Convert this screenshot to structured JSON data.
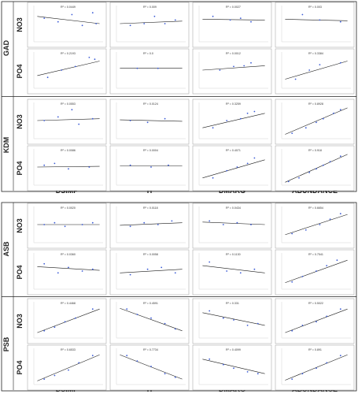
{
  "figure": {
    "panel_a": {
      "groups": [
        "GAD",
        "KDM"
      ],
      "variables": [
        "NO3",
        "PO4"
      ],
      "columns": [
        "DSIMP",
        "H",
        "DMARG",
        "ABUNDANCE"
      ]
    },
    "panel_b": {
      "groups": [
        "ASB",
        "PSB"
      ],
      "variables": [
        "NO3",
        "PO4"
      ],
      "columns": [
        "DSIMP",
        "H",
        "DMARG",
        "ABUNDANCE"
      ]
    }
  },
  "colors": {
    "point": "#3b5bd6",
    "line": "#1a1a1a",
    "frame": "#9a9a9a",
    "divider": "#222222"
  },
  "chart_data": [
    {
      "type": "scatter",
      "group": "GAD",
      "var": "NO3",
      "metric": "DSIMP",
      "r2_label": "R² = 0.0449",
      "xlim": [
        0,
        1
      ],
      "ylim": [
        0,
        1
      ],
      "x": [
        0.15,
        0.35,
        0.55,
        0.7,
        0.85,
        0.9
      ],
      "y": [
        0.65,
        0.55,
        0.75,
        0.45,
        0.8,
        0.5
      ],
      "fit": [
        0.7,
        0.5
      ]
    },
    {
      "type": "scatter",
      "group": "GAD",
      "var": "NO3",
      "metric": "H",
      "r2_label": "R² = 0.009",
      "xlim": [
        0,
        1
      ],
      "ylim": [
        0,
        1
      ],
      "x": [
        0.2,
        0.4,
        0.55,
        0.7,
        0.85
      ],
      "y": [
        0.45,
        0.5,
        0.7,
        0.5,
        0.6
      ],
      "fit": [
        0.5,
        0.57
      ]
    },
    {
      "type": "scatter",
      "group": "GAD",
      "var": "NO3",
      "metric": "DMARG",
      "r2_label": "R² = 0.0027",
      "xlim": [
        0,
        1
      ],
      "ylim": [
        0,
        1
      ],
      "x": [
        0.2,
        0.45,
        0.6,
        0.75
      ],
      "y": [
        0.7,
        0.6,
        0.65,
        0.55
      ],
      "fit": [
        0.62,
        0.6
      ]
    },
    {
      "type": "scatter",
      "group": "GAD",
      "var": "NO3",
      "metric": "ABUNDANCE",
      "r2_label": "R² = 0.003",
      "xlim": [
        0,
        1
      ],
      "ylim": [
        0,
        1
      ],
      "x": [
        0.3,
        0.55,
        0.85
      ],
      "y": [
        0.75,
        0.6,
        0.55
      ],
      "fit": [
        0.62,
        0.58
      ]
    },
    {
      "type": "scatter",
      "group": "GAD",
      "var": "PO4",
      "metric": "DSIMP",
      "r2_label": "R² = 0.2193",
      "xlim": [
        0,
        1
      ],
      "ylim": [
        0,
        1
      ],
      "x": [
        0.2,
        0.4,
        0.6,
        0.8,
        0.88
      ],
      "y": [
        0.3,
        0.5,
        0.6,
        0.85,
        0.8
      ],
      "fit": [
        0.35,
        0.75
      ]
    },
    {
      "type": "scatter",
      "group": "GAD",
      "var": "PO4",
      "metric": "H",
      "r2_label": "R² = 0.0",
      "xlim": [
        0,
        1
      ],
      "ylim": [
        0,
        1
      ],
      "x": [
        0.3,
        0.6
      ],
      "y": [
        0.55,
        0.55
      ],
      "fit": [
        0.55,
        0.55
      ]
    },
    {
      "type": "scatter",
      "group": "GAD",
      "var": "PO4",
      "metric": "DMARG",
      "r2_label": "R² = 0.0012",
      "xlim": [
        0,
        1
      ],
      "ylim": [
        0,
        1
      ],
      "x": [
        0.3,
        0.5,
        0.65,
        0.75
      ],
      "y": [
        0.5,
        0.6,
        0.62,
        0.7
      ],
      "fit": [
        0.5,
        0.62
      ]
    },
    {
      "type": "scatter",
      "group": "GAD",
      "var": "PO4",
      "metric": "ABUNDANCE",
      "r2_label": "R² = 0.3384",
      "xlim": [
        0,
        1
      ],
      "ylim": [
        0,
        1
      ],
      "x": [
        0.2,
        0.4,
        0.55,
        0.85
      ],
      "y": [
        0.25,
        0.5,
        0.65,
        0.7
      ],
      "fit": [
        0.25,
        0.75
      ]
    },
    {
      "type": "scatter",
      "group": "KDM",
      "var": "NO3",
      "metric": "DSIMP",
      "r2_label": "R² = 0.0553",
      "xlim": [
        0,
        1
      ],
      "ylim": [
        0,
        1
      ],
      "x": [
        0.15,
        0.35,
        0.55,
        0.65,
        0.85
      ],
      "y": [
        0.5,
        0.6,
        0.8,
        0.4,
        0.55
      ],
      "fit": [
        0.5,
        0.55
      ]
    },
    {
      "type": "scatter",
      "group": "KDM",
      "var": "NO3",
      "metric": "H",
      "r2_label": "R² = 0.0124",
      "xlim": [
        0,
        1
      ],
      "ylim": [
        0,
        1
      ],
      "x": [
        0.2,
        0.45,
        0.7
      ],
      "y": [
        0.5,
        0.45,
        0.55
      ],
      "fit": [
        0.52,
        0.48
      ]
    },
    {
      "type": "scatter",
      "group": "KDM",
      "var": "NO3",
      "metric": "DMARG",
      "r2_label": "R² = 0.3259",
      "xlim": [
        0,
        1
      ],
      "ylim": [
        0,
        1
      ],
      "x": [
        0.2,
        0.4,
        0.6,
        0.7,
        0.8
      ],
      "y": [
        0.3,
        0.5,
        0.55,
        0.7,
        0.75
      ],
      "fit": [
        0.3,
        0.7
      ]
    },
    {
      "type": "scatter",
      "group": "KDM",
      "var": "NO3",
      "metric": "ABUNDANCE",
      "r2_label": "R² = 0.8928",
      "xlim": [
        0,
        1
      ],
      "ylim": [
        0,
        1
      ],
      "x": [
        0.15,
        0.35,
        0.5,
        0.6,
        0.75,
        0.85
      ],
      "y": [
        0.15,
        0.3,
        0.45,
        0.55,
        0.7,
        0.8
      ],
      "fit": [
        0.12,
        0.85
      ]
    },
    {
      "type": "scatter",
      "group": "KDM",
      "var": "PO4",
      "metric": "DSIMP",
      "r2_label": "R² = 0.0086",
      "xlim": [
        0,
        1
      ],
      "ylim": [
        0,
        1
      ],
      "x": [
        0.15,
        0.3,
        0.5,
        0.8
      ],
      "y": [
        0.55,
        0.6,
        0.45,
        0.5
      ],
      "fit": [
        0.5,
        0.52
      ]
    },
    {
      "type": "scatter",
      "group": "KDM",
      "var": "PO4",
      "metric": "H",
      "r2_label": "R² = 0.0004",
      "xlim": [
        0,
        1
      ],
      "ylim": [
        0,
        1
      ],
      "x": [
        0.2,
        0.5,
        0.75
      ],
      "y": [
        0.55,
        0.5,
        0.55
      ],
      "fit": [
        0.53,
        0.53
      ]
    },
    {
      "type": "scatter",
      "group": "KDM",
      "var": "PO4",
      "metric": "DMARG",
      "r2_label": "R² = 0.4071",
      "xlim": [
        0,
        1
      ],
      "ylim": [
        0,
        1
      ],
      "x": [
        0.2,
        0.4,
        0.55,
        0.7,
        0.8
      ],
      "y": [
        0.2,
        0.4,
        0.5,
        0.6,
        0.75
      ],
      "fit": [
        0.2,
        0.7
      ]
    },
    {
      "type": "scatter",
      "group": "KDM",
      "var": "PO4",
      "metric": "ABUNDANCE",
      "r2_label": "R² = 0.918",
      "xlim": [
        0,
        1
      ],
      "ylim": [
        0,
        1
      ],
      "x": [
        0.1,
        0.25,
        0.4,
        0.5,
        0.6,
        0.7,
        0.85
      ],
      "y": [
        0.1,
        0.2,
        0.35,
        0.45,
        0.55,
        0.65,
        0.8
      ],
      "fit": [
        0.08,
        0.85
      ]
    },
    {
      "type": "scatter",
      "group": "ASB",
      "var": "NO3",
      "metric": "DSIMP",
      "r2_label": "R² = 0.0020",
      "xlim": [
        0,
        1
      ],
      "ylim": [
        0,
        1
      ],
      "x": [
        0.15,
        0.3,
        0.45,
        0.7,
        0.85
      ],
      "y": [
        0.5,
        0.55,
        0.45,
        0.5,
        0.55
      ],
      "fit": [
        0.5,
        0.5
      ]
    },
    {
      "type": "scatter",
      "group": "ASB",
      "var": "NO3",
      "metric": "H",
      "r2_label": "R² = 0.0118",
      "xlim": [
        0,
        1
      ],
      "ylim": [
        0,
        1
      ],
      "x": [
        0.2,
        0.4,
        0.6,
        0.8
      ],
      "y": [
        0.45,
        0.55,
        0.5,
        0.6
      ],
      "fit": [
        0.48,
        0.55
      ]
    },
    {
      "type": "scatter",
      "group": "ASB",
      "var": "NO3",
      "metric": "DMARG",
      "r2_label": "R² = 0.0434",
      "xlim": [
        0,
        1
      ],
      "ylim": [
        0,
        1
      ],
      "x": [
        0.15,
        0.35,
        0.55,
        0.75
      ],
      "y": [
        0.6,
        0.5,
        0.55,
        0.5
      ],
      "fit": [
        0.57,
        0.5
      ]
    },
    {
      "type": "scatter",
      "group": "ASB",
      "var": "NO3",
      "metric": "ABUNDANCE",
      "r2_label": "R² = 0.6654",
      "xlim": [
        0,
        1
      ],
      "ylim": [
        0,
        1
      ],
      "x": [
        0.15,
        0.35,
        0.55,
        0.7,
        0.85
      ],
      "y": [
        0.25,
        0.35,
        0.5,
        0.65,
        0.8
      ],
      "fit": [
        0.22,
        0.78
      ]
    },
    {
      "type": "scatter",
      "group": "ASB",
      "var": "PO4",
      "metric": "DSIMP",
      "r2_label": "R² = 0.0360",
      "xlim": [
        0,
        1
      ],
      "ylim": [
        0,
        1
      ],
      "x": [
        0.15,
        0.35,
        0.5,
        0.7,
        0.85
      ],
      "y": [
        0.7,
        0.45,
        0.6,
        0.5,
        0.55
      ],
      "fit": [
        0.62,
        0.52
      ]
    },
    {
      "type": "scatter",
      "group": "ASB",
      "var": "PO4",
      "metric": "H",
      "r2_label": "R² = 0.0058",
      "xlim": [
        0,
        1
      ],
      "ylim": [
        0,
        1
      ],
      "x": [
        0.2,
        0.45,
        0.65,
        0.85
      ],
      "y": [
        0.4,
        0.55,
        0.6,
        0.45
      ],
      "fit": [
        0.45,
        0.55
      ]
    },
    {
      "type": "scatter",
      "group": "ASB",
      "var": "PO4",
      "metric": "DMARG",
      "r2_label": "R² = 0.1130",
      "xlim": [
        0,
        1
      ],
      "ylim": [
        0,
        1
      ],
      "x": [
        0.15,
        0.4,
        0.6,
        0.8
      ],
      "y": [
        0.75,
        0.5,
        0.45,
        0.55
      ],
      "fit": [
        0.65,
        0.45
      ]
    },
    {
      "type": "scatter",
      "group": "ASB",
      "var": "PO4",
      "metric": "ABUNDANCE",
      "r2_label": "R² = 0.7541",
      "xlim": [
        0,
        1
      ],
      "ylim": [
        0,
        1
      ],
      "x": [
        0.15,
        0.3,
        0.5,
        0.65,
        0.8
      ],
      "y": [
        0.2,
        0.35,
        0.5,
        0.65,
        0.8
      ],
      "fit": [
        0.18,
        0.8
      ]
    },
    {
      "type": "scatter",
      "group": "PSB",
      "var": "NO3",
      "metric": "DSIMP",
      "r2_label": "R² = 0.4468",
      "xlim": [
        0,
        1
      ],
      "ylim": [
        0,
        1
      ],
      "x": [
        0.15,
        0.3,
        0.45,
        0.6,
        0.85
      ],
      "y": [
        0.2,
        0.3,
        0.45,
        0.55,
        0.8
      ],
      "fit": [
        0.15,
        0.8
      ]
    },
    {
      "type": "scatter",
      "group": "PSB",
      "var": "NO3",
      "metric": "H",
      "r2_label": "R² = 0.4591",
      "xlim": [
        0,
        1
      ],
      "ylim": [
        0,
        1
      ],
      "x": [
        0.15,
        0.3,
        0.5,
        0.7,
        0.85
      ],
      "y": [
        0.8,
        0.65,
        0.55,
        0.4,
        0.25
      ],
      "fit": [
        0.82,
        0.2
      ]
    },
    {
      "type": "scatter",
      "group": "PSB",
      "var": "NO3",
      "metric": "DMARG",
      "r2_label": "R² = 0.331",
      "xlim": [
        0,
        1
      ],
      "ylim": [
        0,
        1
      ],
      "x": [
        0.15,
        0.35,
        0.5,
        0.7,
        0.85
      ],
      "y": [
        0.75,
        0.55,
        0.5,
        0.35,
        0.4
      ],
      "fit": [
        0.7,
        0.35
      ]
    },
    {
      "type": "scatter",
      "group": "PSB",
      "var": "NO3",
      "metric": "ABUNDANCE",
      "r2_label": "R² = 0.5022",
      "xlim": [
        0,
        1
      ],
      "ylim": [
        0,
        1
      ],
      "x": [
        0.15,
        0.3,
        0.5,
        0.65,
        0.85
      ],
      "y": [
        0.2,
        0.35,
        0.45,
        0.6,
        0.8
      ],
      "fit": [
        0.15,
        0.8
      ]
    },
    {
      "type": "scatter",
      "group": "PSB",
      "var": "PO4",
      "metric": "DSIMP",
      "r2_label": "R² = 0.6533",
      "xlim": [
        0,
        1
      ],
      "ylim": [
        0,
        1
      ],
      "x": [
        0.15,
        0.3,
        0.5,
        0.65,
        0.85
      ],
      "y": [
        0.15,
        0.25,
        0.4,
        0.6,
        0.8
      ],
      "fit": [
        0.1,
        0.82
      ]
    },
    {
      "type": "scatter",
      "group": "PSB",
      "var": "PO4",
      "metric": "H",
      "r2_label": "R² = 0.7734",
      "xlim": [
        0,
        1
      ],
      "ylim": [
        0,
        1
      ],
      "x": [
        0.15,
        0.3,
        0.5,
        0.7,
        0.85
      ],
      "y": [
        0.8,
        0.65,
        0.5,
        0.3,
        0.2
      ],
      "fit": [
        0.82,
        0.15
      ]
    },
    {
      "type": "scatter",
      "group": "PSB",
      "var": "PO4",
      "metric": "DMARG",
      "r2_label": "R² = 0.4099",
      "xlim": [
        0,
        1
      ],
      "ylim": [
        0,
        1
      ],
      "x": [
        0.15,
        0.35,
        0.5,
        0.7,
        0.85
      ],
      "y": [
        0.7,
        0.55,
        0.45,
        0.35,
        0.3
      ],
      "fit": [
        0.7,
        0.3
      ]
    },
    {
      "type": "scatter",
      "group": "PSB",
      "var": "PO4",
      "metric": "ABUNDANCE",
      "r2_label": "R² = 0.891",
      "xlim": [
        0,
        1
      ],
      "ylim": [
        0,
        1
      ],
      "x": [
        0.15,
        0.3,
        0.5,
        0.65,
        0.85
      ],
      "y": [
        0.15,
        0.3,
        0.45,
        0.6,
        0.8
      ],
      "fit": [
        0.12,
        0.82
      ]
    }
  ]
}
